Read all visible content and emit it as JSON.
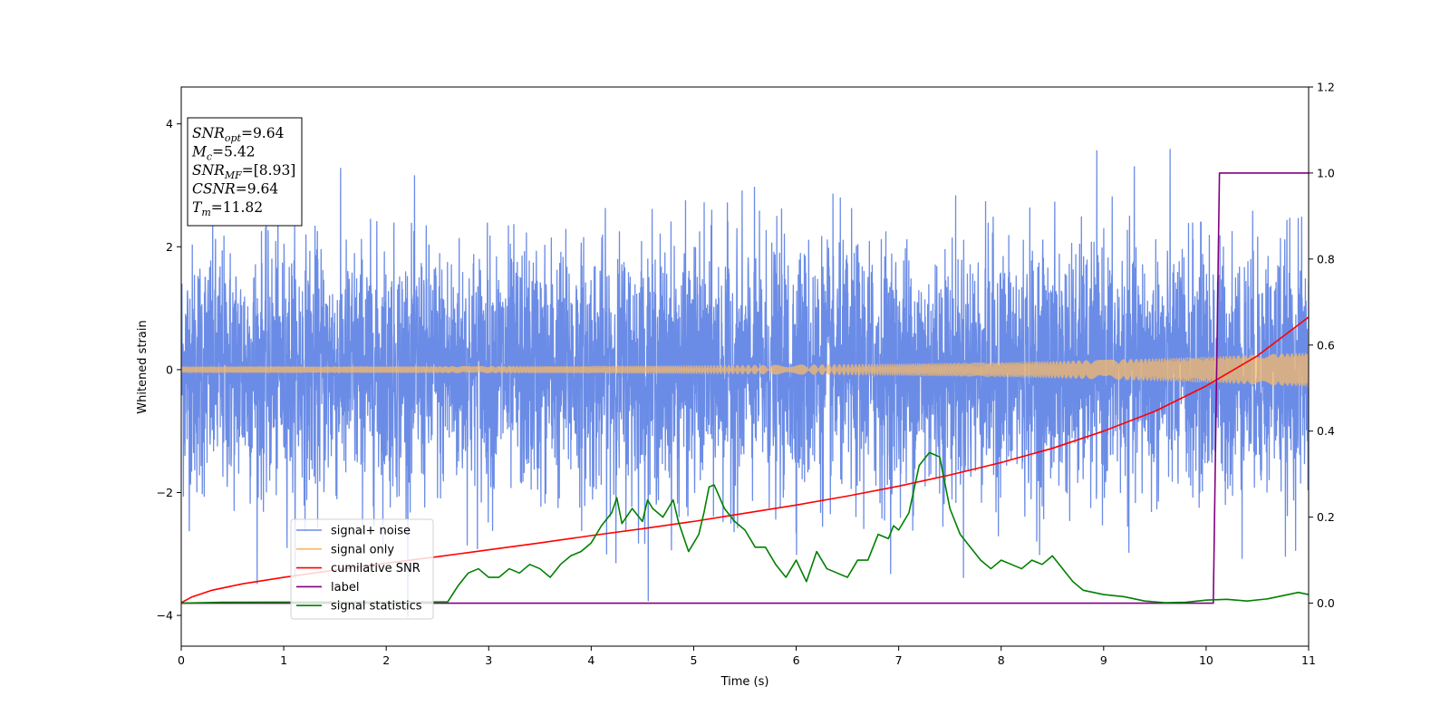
{
  "chart_data": {
    "type": "line",
    "xlabel": "Time (s)",
    "ylabel": "Whitened strain",
    "xlim": [
      0,
      11
    ],
    "ylim": [
      -4.5,
      4.6
    ],
    "y2lim": [
      -0.1,
      1.2
    ],
    "xticks": [
      "0",
      "1",
      "2",
      "3",
      "4",
      "5",
      "6",
      "7",
      "8",
      "9",
      "10",
      "11"
    ],
    "yticks": [
      "−4",
      "−2",
      "0",
      "2",
      "4"
    ],
    "y2ticks": [
      "0.0",
      "0.2",
      "0.4",
      "0.6",
      "0.8",
      "1.0",
      "1.2"
    ],
    "legend_placement": "lower-left",
    "annotation": [
      {
        "base": "SNR",
        "sub": "opt",
        "rest": "=9.64"
      },
      {
        "base": "M",
        "sub": "c",
        "rest": "=5.42"
      },
      {
        "base": "SNR",
        "sub": "MF",
        "rest": "=[8.93]"
      },
      {
        "base": "CSNR",
        "sub": "",
        "rest": "=9.64"
      },
      {
        "base": "T",
        "sub": "m",
        "rest": "=11.82"
      }
    ],
    "series": [
      {
        "name": "signal+ noise",
        "axis": "left",
        "color": "#6b8ce6",
        "kind": "noise",
        "sigma": 1.0,
        "peak_abs": 4.1
      },
      {
        "name": "signal only",
        "axis": "left",
        "color": "#f5b96a",
        "kind": "chirp_envelope",
        "envelope": [
          [
            0,
            0.05
          ],
          [
            2,
            0.055
          ],
          [
            4,
            0.06
          ],
          [
            6,
            0.08
          ],
          [
            8,
            0.12
          ],
          [
            9,
            0.16
          ],
          [
            10,
            0.21
          ],
          [
            11,
            0.28
          ]
        ]
      },
      {
        "name": "cumilative SNR",
        "axis": "right",
        "color": "#ff0000",
        "x": [
          0,
          0.1,
          0.3,
          0.6,
          1,
          1.5,
          2,
          2.5,
          3,
          3.5,
          4,
          4.5,
          5,
          5.5,
          6,
          6.5,
          7,
          7.5,
          8,
          8.5,
          9,
          9.5,
          10,
          10.5,
          11
        ],
        "y": [
          0.001,
          0.014,
          0.03,
          0.045,
          0.06,
          0.077,
          0.093,
          0.108,
          0.124,
          0.14,
          0.157,
          0.173,
          0.19,
          0.209,
          0.228,
          0.249,
          0.272,
          0.298,
          0.327,
          0.36,
          0.4,
          0.446,
          0.505,
          0.575,
          0.665
        ]
      },
      {
        "name": "label",
        "axis": "right",
        "color": "#800080",
        "x": [
          0,
          10.07,
          10.13,
          11
        ],
        "y": [
          0,
          0,
          1,
          1
        ]
      },
      {
        "name": "signal statistics",
        "axis": "right",
        "color": "#008000",
        "x": [
          0,
          0.4,
          2.6,
          2.7,
          2.8,
          2.9,
          3.0,
          3.1,
          3.2,
          3.3,
          3.4,
          3.5,
          3.6,
          3.7,
          3.8,
          3.9,
          4.0,
          4.1,
          4.2,
          4.25,
          4.3,
          4.4,
          4.5,
          4.55,
          4.6,
          4.7,
          4.8,
          4.85,
          4.95,
          5.05,
          5.1,
          5.15,
          5.2,
          5.3,
          5.4,
          5.5,
          5.6,
          5.7,
          5.8,
          5.9,
          6.0,
          6.1,
          6.2,
          6.3,
          6.4,
          6.5,
          6.6,
          6.7,
          6.8,
          6.9,
          6.95,
          7.0,
          7.1,
          7.2,
          7.3,
          7.4,
          7.5,
          7.6,
          7.7,
          7.8,
          7.9,
          8.0,
          8.1,
          8.2,
          8.3,
          8.4,
          8.5,
          8.6,
          8.7,
          8.8,
          9.0,
          9.2,
          9.4,
          9.6,
          9.8,
          10.0,
          10.2,
          10.4,
          10.6,
          10.8,
          10.9,
          11.0
        ],
        "y": [
          0.0,
          0.002,
          0.003,
          0.04,
          0.07,
          0.08,
          0.06,
          0.06,
          0.08,
          0.07,
          0.09,
          0.08,
          0.06,
          0.09,
          0.11,
          0.12,
          0.14,
          0.18,
          0.21,
          0.245,
          0.185,
          0.22,
          0.19,
          0.24,
          0.22,
          0.2,
          0.24,
          0.19,
          0.12,
          0.16,
          0.21,
          0.27,
          0.275,
          0.22,
          0.19,
          0.17,
          0.13,
          0.13,
          0.09,
          0.06,
          0.1,
          0.05,
          0.12,
          0.08,
          0.07,
          0.06,
          0.1,
          0.1,
          0.16,
          0.15,
          0.18,
          0.17,
          0.21,
          0.32,
          0.35,
          0.34,
          0.22,
          0.16,
          0.13,
          0.1,
          0.08,
          0.1,
          0.09,
          0.08,
          0.1,
          0.09,
          0.11,
          0.08,
          0.05,
          0.03,
          0.02,
          0.015,
          0.005,
          0.001,
          0.002,
          0.007,
          0.009,
          0.005,
          0.01,
          0.02,
          0.025,
          0.02
        ]
      }
    ]
  }
}
